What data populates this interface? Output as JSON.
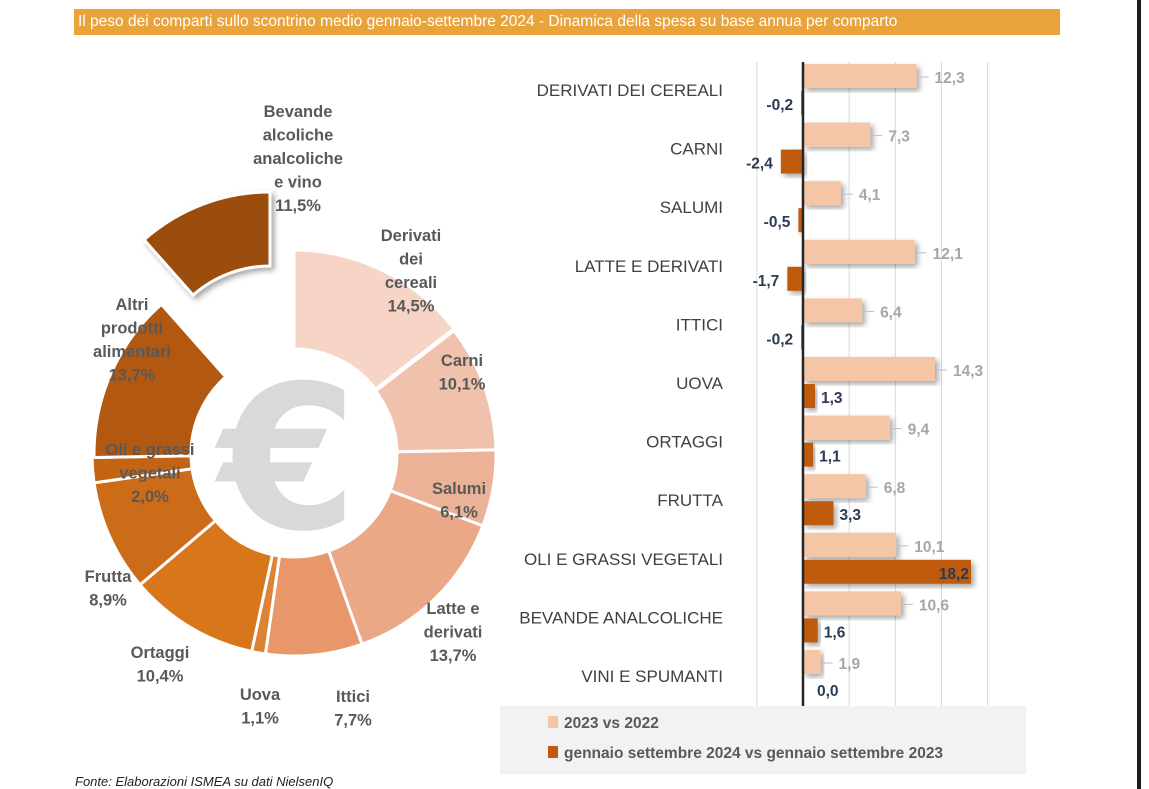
{
  "title": "Il peso dei comparti sullo scontrino medio gennaio-settembre 2024 - Dinamica della spesa su base annua per comparto",
  "source": "Fonte: Elaborazioni ISMEA su dati NielsenIQ",
  "colors": {
    "title_bg": "#e8a33a",
    "series_2023": "#f5c6a5",
    "series_2024": "#c05a0e",
    "value_2023": "#a6a6a6",
    "value_2024": "#2b3a55"
  },
  "chart_data": [
    {
      "type": "pie",
      "variant": "donut",
      "center_icon": "euro-icon",
      "slices": [
        {
          "label_lines": [
            "Derivati",
            "dei",
            "cereali"
          ],
          "value": 14.5,
          "value_label": "14,5%",
          "color": "#f6d5c6",
          "exploded": true
        },
        {
          "label_lines": [
            "Carni"
          ],
          "value": 10.1,
          "value_label": "10,1%",
          "color": "#f0c2ad"
        },
        {
          "label_lines": [
            "Salumi"
          ],
          "value": 6.1,
          "value_label": "6,1%",
          "color": "#ecb297"
        },
        {
          "label_lines": [
            "Latte e",
            "derivati"
          ],
          "value": 13.7,
          "value_label": "13,7%",
          "color": "#eaa887"
        },
        {
          "label_lines": [
            "Ittici"
          ],
          "value": 7.7,
          "value_label": "7,7%",
          "color": "#e8976a"
        },
        {
          "label_lines": [
            "Uova"
          ],
          "value": 1.1,
          "value_label": "1,1%",
          "color": "#de8236"
        },
        {
          "label_lines": [
            "Ortaggi"
          ],
          "value": 10.4,
          "value_label": "10,4%",
          "color": "#d8761c"
        },
        {
          "label_lines": [
            "Frutta"
          ],
          "value": 8.9,
          "value_label": "8,9%",
          "color": "#cd6c18"
        },
        {
          "label_lines": [
            "Oli e grassi",
            "vegetali"
          ],
          "value": 2.0,
          "value_label": "2,0%",
          "color": "#c26414"
        },
        {
          "label_lines": [
            "Altri",
            "prodotti",
            "alimentari"
          ],
          "value": 13.7,
          "value_label": "13,7%",
          "color": "#b25811"
        },
        {
          "label_lines": [
            "Bevande",
            "alcoliche",
            "analcoliche",
            "e vino"
          ],
          "value": 11.5,
          "value_label": "11,5%",
          "color": "#9b4d0c",
          "exploded": true
        }
      ]
    },
    {
      "type": "bar",
      "orientation": "horizontal",
      "categories": [
        "DERIVATI DEI CEREALI",
        "CARNI",
        "SALUMI",
        "LATTE E DERIVATI",
        "ITTICI",
        "UOVA",
        "ORTAGGI",
        "FRUTTA",
        "OLI E GRASSI VEGETALI",
        "BEVANDE ANALCOLICHE",
        "VINI E SPUMANTI"
      ],
      "series": [
        {
          "name": "2023 vs 2022",
          "values": [
            12.3,
            7.3,
            4.1,
            12.1,
            6.4,
            14.3,
            9.4,
            6.8,
            10.1,
            10.6,
            1.9
          ],
          "labels": [
            "12,3",
            "7,3",
            "4,1",
            "12,1",
            "6,4",
            "14,3",
            "9,4",
            "6,8",
            "10,1",
            "10,6",
            "1,9"
          ]
        },
        {
          "name": "gennaio settembre 2024 vs gennaio settembre 2023",
          "values": [
            -0.2,
            -2.4,
            -0.5,
            -1.7,
            -0.2,
            1.3,
            1.1,
            3.3,
            18.2,
            1.6,
            0.0
          ],
          "labels": [
            "-0,2",
            "-2,4",
            "-0,5",
            "-1,7",
            "-0,2",
            "1,3",
            "1,1",
            "3,3",
            "18,2",
            "1,6",
            "0,0"
          ]
        }
      ],
      "xlim": [
        -5,
        20
      ],
      "grid": true,
      "legend_position": "bottom"
    }
  ]
}
